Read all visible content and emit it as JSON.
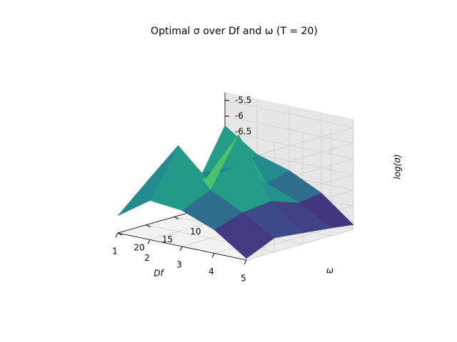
{
  "chart_data": {
    "type": "surface",
    "title": "Optimal σ over Df and ω (T = 20)",
    "x_label": "Df",
    "y_label": "ω",
    "z_label": "log(σ)",
    "x": [
      1,
      2,
      3,
      4,
      5
    ],
    "y": [
      1,
      5,
      10,
      15,
      20
    ],
    "z": [
      [
        -6.3,
        -7.6,
        -7.5,
        -7.4,
        -8.2
      ],
      [
        -7.0,
        -7.2,
        -7.3,
        -6.0,
        -7.5
      ],
      [
        -7.3,
        -7.5,
        -5.7,
        -7.2,
        -7.6
      ],
      [
        -7.8,
        -7.9,
        -7.6,
        -7.7,
        -8.0
      ],
      [
        -8.6,
        -8.5,
        -8.4,
        -8.3,
        -8.7
      ]
    ],
    "cmap": "viridis",
    "xlim": [
      1,
      5
    ],
    "ylim": [
      1,
      20
    ],
    "zlim": [
      -8.75,
      -5.25
    ],
    "xticks": [
      1,
      2,
      3,
      4,
      5
    ],
    "yticks": [
      5,
      10,
      15,
      20
    ],
    "zticks": [
      -8.5,
      -8.0,
      -7.5,
      -7.0,
      -6.5,
      -6.0,
      -5.5
    ],
    "grid": true
  }
}
